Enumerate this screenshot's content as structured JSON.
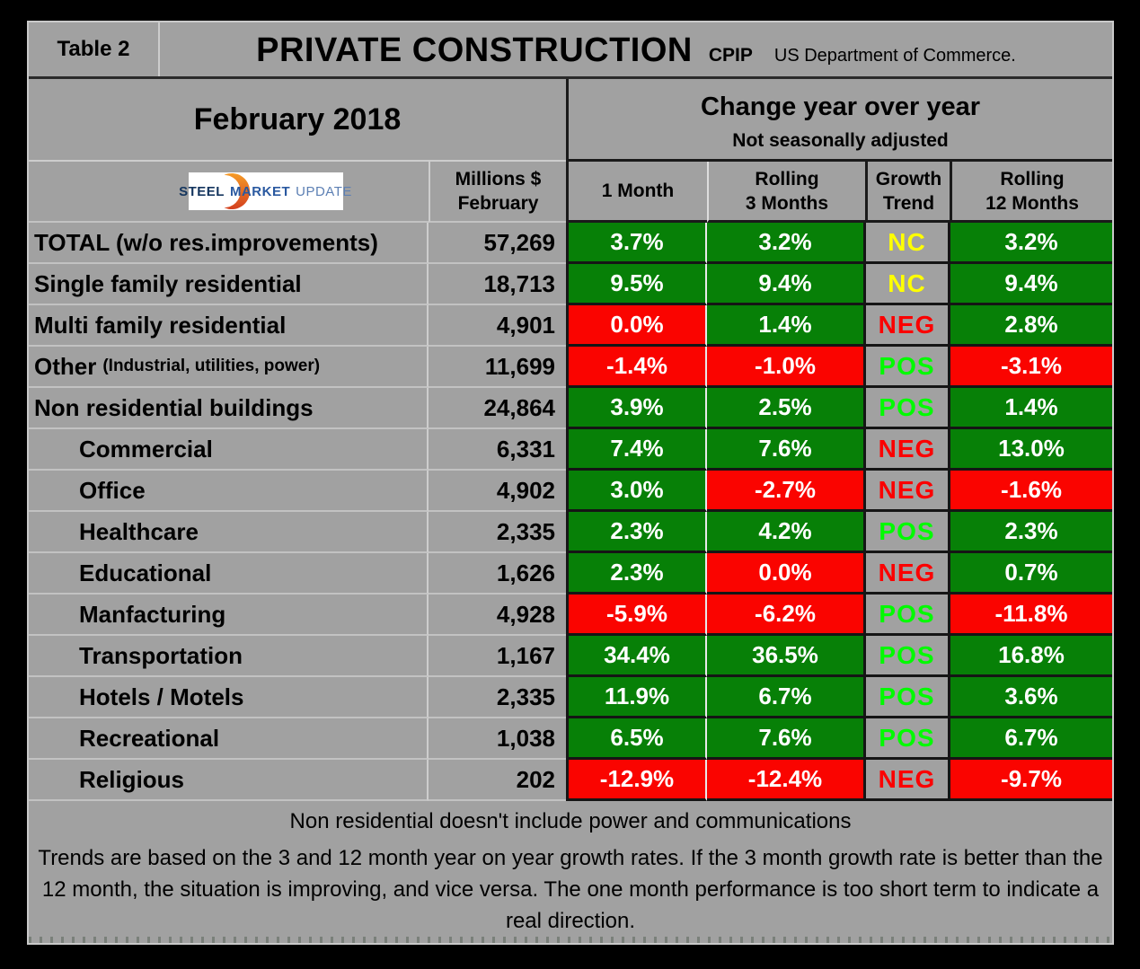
{
  "header": {
    "table_label": "Table 2",
    "title": "PRIVATE CONSTRUCTION",
    "cpip": "CPIP",
    "agency": "US Department of Commerce.",
    "month_title": "February 2018",
    "change_title": "Change year over year",
    "change_subtitle": "Not seasonally adjusted"
  },
  "logo": {
    "word1": "STEEL",
    "word2": "MARKET",
    "word3": "UPDATE"
  },
  "columns": {
    "millions": "Millions $\nFebruary",
    "month1": "1 Month",
    "rolling3": "Rolling\n3 Months",
    "growth_trend": "Growth\nTrend",
    "rolling12": "Rolling\n12 Months"
  },
  "rows": [
    {
      "label": "TOTAL (w/o res.improvements)",
      "note": "",
      "indent": false,
      "millions": "57,269",
      "m1": {
        "v": "3.7%",
        "s": "positive"
      },
      "m3": {
        "v": "3.2%",
        "s": "positive"
      },
      "trend": {
        "v": "NC",
        "s": "nc"
      },
      "m12": {
        "v": "3.2%",
        "s": "positive"
      }
    },
    {
      "label": "Single family residential",
      "note": "",
      "indent": false,
      "millions": "18,713",
      "m1": {
        "v": "9.5%",
        "s": "positive"
      },
      "m3": {
        "v": "9.4%",
        "s": "positive"
      },
      "trend": {
        "v": "NC",
        "s": "nc"
      },
      "m12": {
        "v": "9.4%",
        "s": "positive"
      }
    },
    {
      "label": "Multi family residential",
      "note": "",
      "indent": false,
      "millions": "4,901",
      "m1": {
        "v": "0.0%",
        "s": "negative"
      },
      "m3": {
        "v": "1.4%",
        "s": "positive"
      },
      "trend": {
        "v": "NEG",
        "s": "neg"
      },
      "m12": {
        "v": "2.8%",
        "s": "positive"
      }
    },
    {
      "label": "Other",
      "note": "(Industrial, utilities, power)",
      "indent": false,
      "millions": "11,699",
      "m1": {
        "v": "-1.4%",
        "s": "negative"
      },
      "m3": {
        "v": "-1.0%",
        "s": "negative"
      },
      "trend": {
        "v": "POS",
        "s": "pos"
      },
      "m12": {
        "v": "-3.1%",
        "s": "negative"
      }
    },
    {
      "label": "Non residential buildings",
      "note": "",
      "indent": false,
      "millions": "24,864",
      "m1": {
        "v": "3.9%",
        "s": "positive"
      },
      "m3": {
        "v": "2.5%",
        "s": "positive"
      },
      "trend": {
        "v": "POS",
        "s": "pos"
      },
      "m12": {
        "v": "1.4%",
        "s": "positive"
      }
    },
    {
      "label": "Commercial",
      "note": "",
      "indent": true,
      "millions": "6,331",
      "m1": {
        "v": "7.4%",
        "s": "positive"
      },
      "m3": {
        "v": "7.6%",
        "s": "positive"
      },
      "trend": {
        "v": "NEG",
        "s": "neg"
      },
      "m12": {
        "v": "13.0%",
        "s": "positive"
      }
    },
    {
      "label": "Office",
      "note": "",
      "indent": true,
      "millions": "4,902",
      "m1": {
        "v": "3.0%",
        "s": "positive"
      },
      "m3": {
        "v": "-2.7%",
        "s": "negative"
      },
      "trend": {
        "v": "NEG",
        "s": "neg"
      },
      "m12": {
        "v": "-1.6%",
        "s": "negative"
      }
    },
    {
      "label": "Healthcare",
      "note": "",
      "indent": true,
      "millions": "2,335",
      "m1": {
        "v": "2.3%",
        "s": "positive"
      },
      "m3": {
        "v": "4.2%",
        "s": "positive"
      },
      "trend": {
        "v": "POS",
        "s": "pos"
      },
      "m12": {
        "v": "2.3%",
        "s": "positive"
      }
    },
    {
      "label": "Educational",
      "note": "",
      "indent": true,
      "millions": "1,626",
      "m1": {
        "v": "2.3%",
        "s": "positive"
      },
      "m3": {
        "v": "0.0%",
        "s": "negative"
      },
      "trend": {
        "v": "NEG",
        "s": "neg"
      },
      "m12": {
        "v": "0.7%",
        "s": "positive"
      }
    },
    {
      "label": "Manfacturing",
      "note": "",
      "indent": true,
      "millions": "4,928",
      "m1": {
        "v": "-5.9%",
        "s": "negative"
      },
      "m3": {
        "v": "-6.2%",
        "s": "negative"
      },
      "trend": {
        "v": "POS",
        "s": "pos"
      },
      "m12": {
        "v": "-11.8%",
        "s": "negative"
      }
    },
    {
      "label": "Transportation",
      "note": "",
      "indent": true,
      "millions": "1,167",
      "m1": {
        "v": "34.4%",
        "s": "positive"
      },
      "m3": {
        "v": "36.5%",
        "s": "positive"
      },
      "trend": {
        "v": "POS",
        "s": "pos"
      },
      "m12": {
        "v": "16.8%",
        "s": "positive"
      }
    },
    {
      "label": "Hotels / Motels",
      "note": "",
      "indent": true,
      "millions": "2,335",
      "m1": {
        "v": "11.9%",
        "s": "positive"
      },
      "m3": {
        "v": "6.7%",
        "s": "positive"
      },
      "trend": {
        "v": "POS",
        "s": "pos"
      },
      "m12": {
        "v": "3.6%",
        "s": "positive"
      }
    },
    {
      "label": "Recreational",
      "note": "",
      "indent": true,
      "millions": "1,038",
      "m1": {
        "v": "6.5%",
        "s": "positive"
      },
      "m3": {
        "v": "7.6%",
        "s": "positive"
      },
      "trend": {
        "v": "POS",
        "s": "pos"
      },
      "m12": {
        "v": "6.7%",
        "s": "positive"
      }
    },
    {
      "label": "Religious",
      "note": "",
      "indent": true,
      "millions": "202",
      "m1": {
        "v": "-12.9%",
        "s": "negative"
      },
      "m3": {
        "v": "-12.4%",
        "s": "negative"
      },
      "trend": {
        "v": "NEG",
        "s": "neg"
      },
      "m12": {
        "v": "-9.7%",
        "s": "negative"
      }
    }
  ],
  "footer": {
    "note1": "Non residential doesn't include power and communications",
    "note2": "Trends are based on the 3 and 12 month year on year growth rates. If the 3 month growth rate is better than the 12 month, the situation is improving, and vice versa. The one month performance is too short term to indicate a real direction."
  },
  "colors": {
    "positive_bg": "#078007",
    "negative_bg": "#fa0400",
    "trend_nc": "#ffff00",
    "trend_pos": "#00fb00",
    "trend_neg": "#fb0000",
    "sheet_bg": "#a1a1a1",
    "frame_bg": "#000000"
  },
  "chart_data": {
    "type": "table",
    "title": "Table 2 — PRIVATE CONSTRUCTION (CPIP, US Department of Commerce)",
    "period": "February 2018",
    "subtitle": "Change year over year — Not seasonally adjusted",
    "columns": [
      "Category",
      "Millions $ February",
      "1 Month",
      "Rolling 3 Months",
      "Growth Trend",
      "Rolling 12 Months"
    ],
    "rows": [
      [
        "TOTAL (w/o res.improvements)",
        57269,
        3.7,
        3.2,
        "NC",
        3.2
      ],
      [
        "Single family residential",
        18713,
        9.5,
        9.4,
        "NC",
        9.4
      ],
      [
        "Multi family residential",
        4901,
        0.0,
        1.4,
        "NEG",
        2.8
      ],
      [
        "Other (Industrial, utilities, power)",
        11699,
        -1.4,
        -1.0,
        "POS",
        -3.1
      ],
      [
        "Non residential buildings",
        24864,
        3.9,
        2.5,
        "POS",
        1.4
      ],
      [
        "Commercial",
        6331,
        7.4,
        7.6,
        "NEG",
        13.0
      ],
      [
        "Office",
        4902,
        3.0,
        -2.7,
        "NEG",
        -1.6
      ],
      [
        "Healthcare",
        2335,
        2.3,
        4.2,
        "POS",
        2.3
      ],
      [
        "Educational",
        1626,
        2.3,
        0.0,
        "NEG",
        0.7
      ],
      [
        "Manfacturing",
        4928,
        -5.9,
        -6.2,
        "POS",
        -11.8
      ],
      [
        "Transportation",
        1167,
        34.4,
        36.5,
        "POS",
        16.8
      ],
      [
        "Hotels / Motels",
        2335,
        11.9,
        6.7,
        "POS",
        3.6
      ],
      [
        "Recreational",
        1038,
        6.5,
        7.6,
        "POS",
        6.7
      ],
      [
        "Religious",
        202,
        -12.9,
        -12.4,
        "NEG",
        -9.7
      ]
    ]
  }
}
